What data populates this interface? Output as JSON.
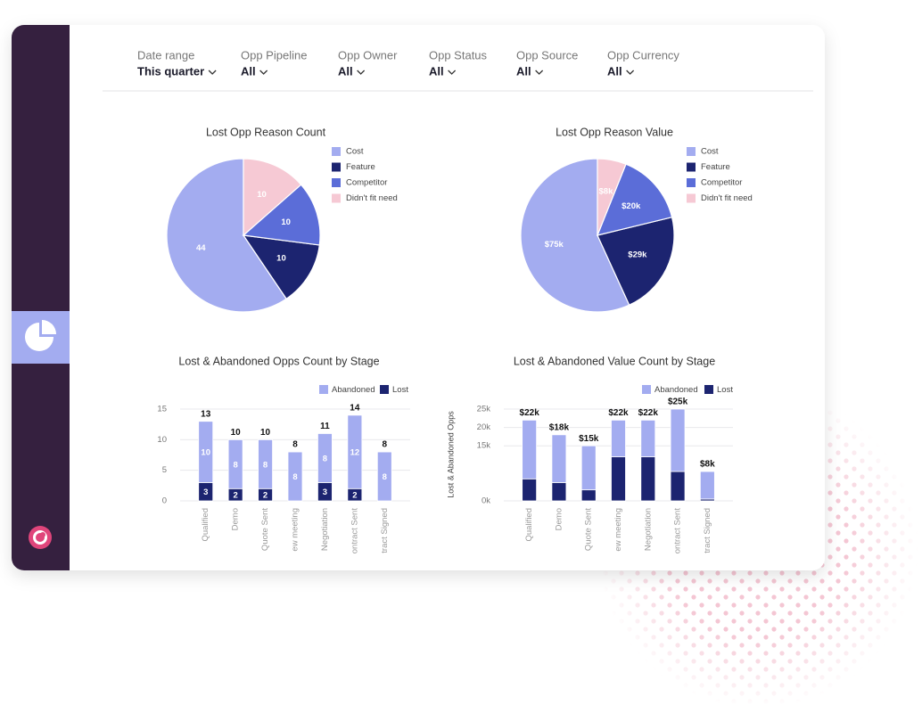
{
  "filters": [
    {
      "label": "Date range",
      "value": "This quarter"
    },
    {
      "label": "Opp Pipeline",
      "value": "All"
    },
    {
      "label": "Opp Owner",
      "value": "All"
    },
    {
      "label": "Opp Status",
      "value": "All"
    },
    {
      "label": "Opp Source",
      "value": "All"
    },
    {
      "label": "Opp Currency",
      "value": "All"
    }
  ],
  "chart_data": [
    {
      "type": "pie",
      "title": "Lost Opp Reason Count",
      "categories": [
        "Cost",
        "Feature",
        "Competitor",
        "Didn't fit need"
      ],
      "values": [
        44,
        10,
        10,
        10
      ],
      "colors": [
        "#a3acf0",
        "#1c2470",
        "#5b6dd8",
        "#f6c9d4"
      ]
    },
    {
      "type": "pie",
      "title": "Lost Opp Reason Value",
      "categories": [
        "Cost",
        "Feature",
        "Competitor",
        "Didn't fit need"
      ],
      "values": [
        75000,
        29000,
        20000,
        8000
      ],
      "value_labels": [
        "$75k",
        "$29k",
        "$20k",
        "$8k"
      ],
      "colors": [
        "#a3acf0",
        "#1c2470",
        "#5b6dd8",
        "#f6c9d4"
      ]
    },
    {
      "type": "bar",
      "stacked": true,
      "title": "Lost & Abandoned Opps Count by Stage",
      "categories": [
        "Qualified",
        "Demo",
        "Quote Sent",
        "ew meeting",
        "Negotiation",
        "ontract Sent",
        "tract Signed"
      ],
      "series": [
        {
          "name": "Abandoned",
          "color": "#a3acf0",
          "values": [
            10,
            8,
            8,
            8,
            8,
            12,
            8
          ]
        },
        {
          "name": "Lost",
          "color": "#1c2470",
          "values": [
            3,
            2,
            2,
            0,
            3,
            2,
            0
          ]
        }
      ],
      "totals": [
        13,
        10,
        10,
        8,
        11,
        14,
        8
      ],
      "ylim": [
        0,
        15
      ],
      "yticks": [
        0,
        5,
        10,
        15
      ],
      "grid": true
    },
    {
      "type": "bar",
      "stacked": true,
      "title": "Lost & Abandoned Value Count by Stage",
      "ylabel": "Lost & Abandoned Opps",
      "categories": [
        "Qualified",
        "Demo",
        "Quote Sent",
        "ew meeting",
        "Negotiation",
        "ontract Sent",
        "tract Signed"
      ],
      "series": [
        {
          "name": "Abandoned",
          "color": "#a3acf0",
          "values": [
            16000,
            13000,
            12000,
            10000,
            10000,
            17000,
            7500
          ]
        },
        {
          "name": "Lost",
          "color": "#1c2470",
          "values": [
            6000,
            5000,
            3000,
            12000,
            12000,
            8000,
            500
          ]
        }
      ],
      "totals": [
        22000,
        18000,
        15000,
        22000,
        22000,
        25000,
        8000
      ],
      "total_labels": [
        "$22k",
        "$18k",
        "$15k",
        "$22k",
        "$22k",
        "$25k",
        "$8k"
      ],
      "ylim": [
        0,
        25000
      ],
      "yticks": [
        {
          "value": 0,
          "label": "0k"
        },
        {
          "value": 15000,
          "label": "15k"
        },
        {
          "value": 20000,
          "label": "20k"
        },
        {
          "value": 25000,
          "label": "25k"
        }
      ],
      "grid": true
    }
  ]
}
